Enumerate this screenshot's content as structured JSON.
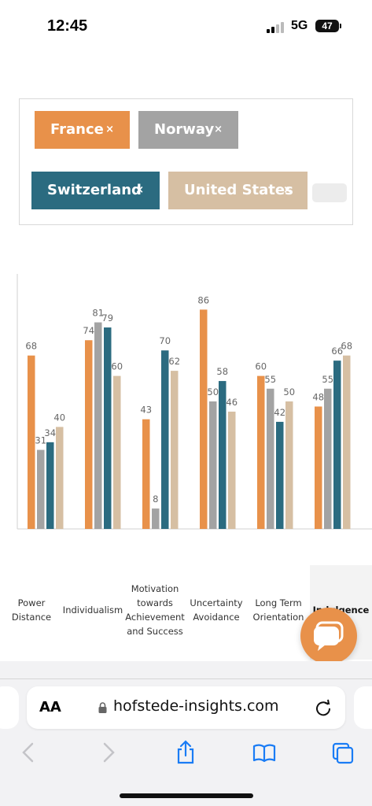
{
  "status_bar": {
    "time": "12:45",
    "network": "5G",
    "battery": "47"
  },
  "filters": {
    "chips": [
      {
        "label": "France",
        "color": "#e8914a"
      },
      {
        "label": "Norway",
        "color": "#a3a3a3"
      },
      {
        "label": "Switzerland",
        "color": "#2b6b80"
      },
      {
        "label": "United States",
        "color": "#d6bfa3"
      }
    ],
    "remove_symbol": "×"
  },
  "chart_data": {
    "type": "bar",
    "categories": [
      "Power\nDistance",
      "Individualism",
      "Motivation\ntowards\nAchievement\nand Success",
      "Uncertainty\nAvoidance",
      "Long Term\nOrientation",
      "Indulgence"
    ],
    "visible_category_text": [
      "Power\nDistance",
      "Individualism",
      "Motivation\ntowards\nAchievement\nand Success",
      "Uncertainty\nAvoidance",
      "Long Term\nOrientation",
      "Indulgence"
    ],
    "series": [
      {
        "name": "France",
        "color": "#e8914a",
        "values": [
          68,
          74,
          43,
          86,
          60,
          48
        ]
      },
      {
        "name": "Norway",
        "color": "#a3a3a3",
        "values": [
          31,
          81,
          8,
          50,
          55,
          55
        ]
      },
      {
        "name": "Switzerland",
        "color": "#2b6b80",
        "values": [
          34,
          79,
          70,
          58,
          42,
          66
        ]
      },
      {
        "name": "United States",
        "color": "#d6bfa3",
        "values": [
          40,
          60,
          62,
          46,
          50,
          68
        ]
      }
    ],
    "ylim": [
      0,
      100
    ],
    "grid": false,
    "legend": "top"
  },
  "browser": {
    "aa_label": "AA",
    "url": "hofstede-insights.com"
  },
  "icons": {
    "back": "chevron-left-icon",
    "forward": "chevron-right-icon",
    "share": "share-icon",
    "bookmarks": "book-icon",
    "tabs": "tabs-icon",
    "chat": "chat-bubble-icon"
  }
}
